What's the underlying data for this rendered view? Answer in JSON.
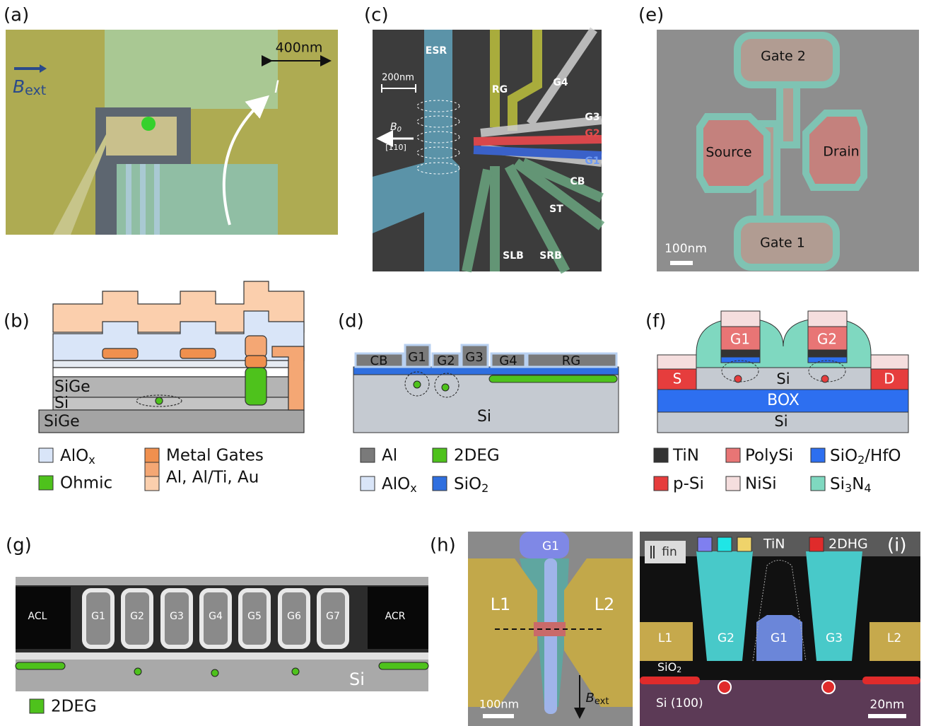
{
  "panel_a": {
    "label": "(a)",
    "scale": "400nm",
    "field": {
      "symbol": "B",
      "sub": "ext"
    },
    "current": "I"
  },
  "panel_b": {
    "label": "(b)",
    "layers": [
      "SiGe",
      "Si",
      "SiGe"
    ],
    "legend": {
      "alox": {
        "text": "AlO",
        "sub": "x"
      },
      "ohmic": "Ohmic",
      "metal": "Metal Gates",
      "metals": "Al, Al/Ti, Au"
    }
  },
  "panel_c": {
    "label": "(c)",
    "esr": "ESR",
    "scale": "200nm",
    "field": {
      "symbol": "B",
      "sub": "0"
    },
    "direction": "[110]",
    "gates": [
      "RG",
      "G4",
      "G3",
      "G2",
      "G1",
      "CB",
      "ST",
      "SLB",
      "SRB"
    ]
  },
  "panel_d": {
    "label": "(d)",
    "gates": [
      "CB",
      "G1",
      "G2",
      "G3",
      "G4",
      "RG"
    ],
    "substrate": "Si",
    "legend": {
      "al": "Al",
      "deg": "2DEG",
      "alox": {
        "text": "AlO",
        "sub": "x"
      },
      "sio2": {
        "text": "SiO",
        "sub": "2"
      }
    }
  },
  "panel_e": {
    "label": "(e)",
    "gate2": "Gate 2",
    "source": "Source",
    "drain": "Drain",
    "gate1": "Gate 1",
    "scale": "100nm"
  },
  "panel_f": {
    "label": "(f)",
    "gates": [
      "G1",
      "G2"
    ],
    "source": "S",
    "channel": "Si",
    "drain": "D",
    "box": "BOX",
    "substrate": "Si",
    "legend": {
      "tin": "TiN",
      "poly": "PolySi",
      "oxide": {
        "text": "SiO",
        "sub": "2",
        "rest": "/HfO"
      },
      "psi": "p-Si",
      "nisi": "NiSi",
      "nitride": {
        "a": "Si",
        "b": "3",
        "c": "N",
        "d": "4"
      }
    }
  },
  "panel_g": {
    "label": "(g)",
    "left": "ACL",
    "gates": [
      "G1",
      "G2",
      "G3",
      "G4",
      "G5",
      "G6",
      "G7"
    ],
    "right": "ACR",
    "substrate": "Si",
    "legend": "2DEG"
  },
  "panel_h": {
    "label": "(h)",
    "gate": "G1",
    "left": "L1",
    "right": "L2",
    "scale": "100nm",
    "field": {
      "symbol": "B",
      "sub": "ext"
    }
  },
  "panel_i": {
    "label": "(i)",
    "fin": "fin",
    "legend": {
      "tin": "TiN",
      "dhg": "2DHG"
    },
    "leads": [
      "L1",
      "L2"
    ],
    "gates": [
      "G2",
      "G1",
      "G3"
    ],
    "oxide": {
      "text": "SiO",
      "sub": "2"
    },
    "substrate": "Si (100)",
    "scale": "20nm"
  }
}
